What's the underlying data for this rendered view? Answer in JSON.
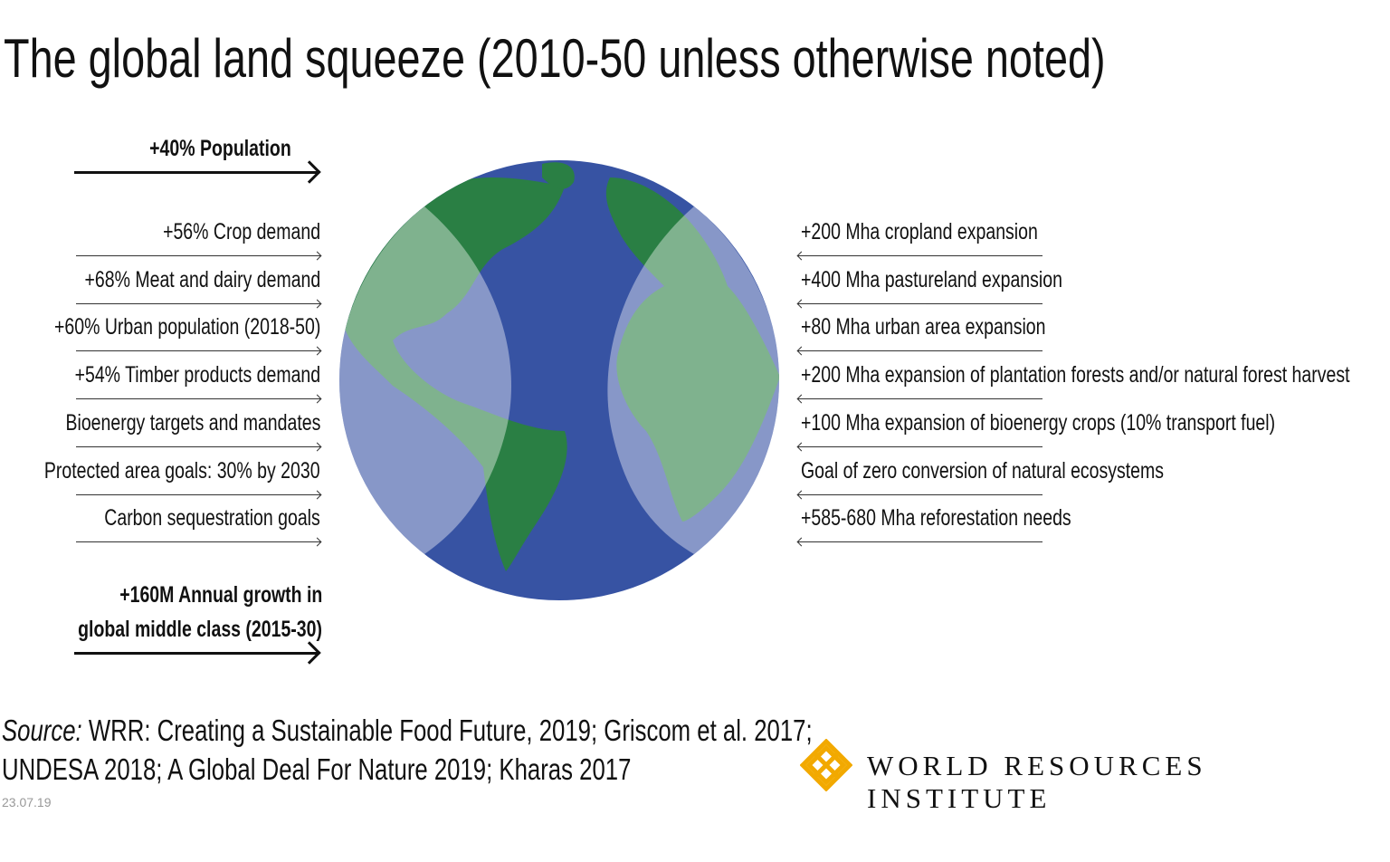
{
  "title": "The global land squeeze (2010-50 unless otherwise noted)",
  "left": {
    "top_driver": "+40% Population",
    "items": [
      "+56% Crop demand",
      "+68% Meat and dairy demand",
      "+60% Urban population (2018-50)",
      "+54% Timber products demand",
      "Bioenergy targets and mandates",
      "Protected area goals: 30% by 2030",
      "Carbon sequestration goals"
    ],
    "bottom_driver_line1": "+160M Annual growth in",
    "bottom_driver_line2": "global middle class (2015-30)"
  },
  "right": {
    "items": [
      "+200 Mha cropland expansion",
      "+400 Mha pastureland expansion",
      "+80 Mha urban area expansion",
      "+200 Mha expansion of plantation forests and/or natural forest harvest",
      "+100 Mha expansion of bioenergy crops (10% transport fuel)",
      "Goal of zero conversion of natural ecosystems",
      "+585-680 Mha reforestation needs"
    ]
  },
  "source": {
    "label": "Source:",
    "line1": " WRR: Creating a Sustainable Food Future, 2019; Griscom et al. 2017;",
    "line2": "UNDESA 2018; A Global Deal For Nature 2019; Kharas 2017"
  },
  "date": "23.07.19",
  "logo": {
    "text": "WORLD RESOURCES INSTITUTE",
    "color": "#f2a900"
  },
  "colors": {
    "ocean": "#3753a3",
    "land": "#2a7f44"
  }
}
